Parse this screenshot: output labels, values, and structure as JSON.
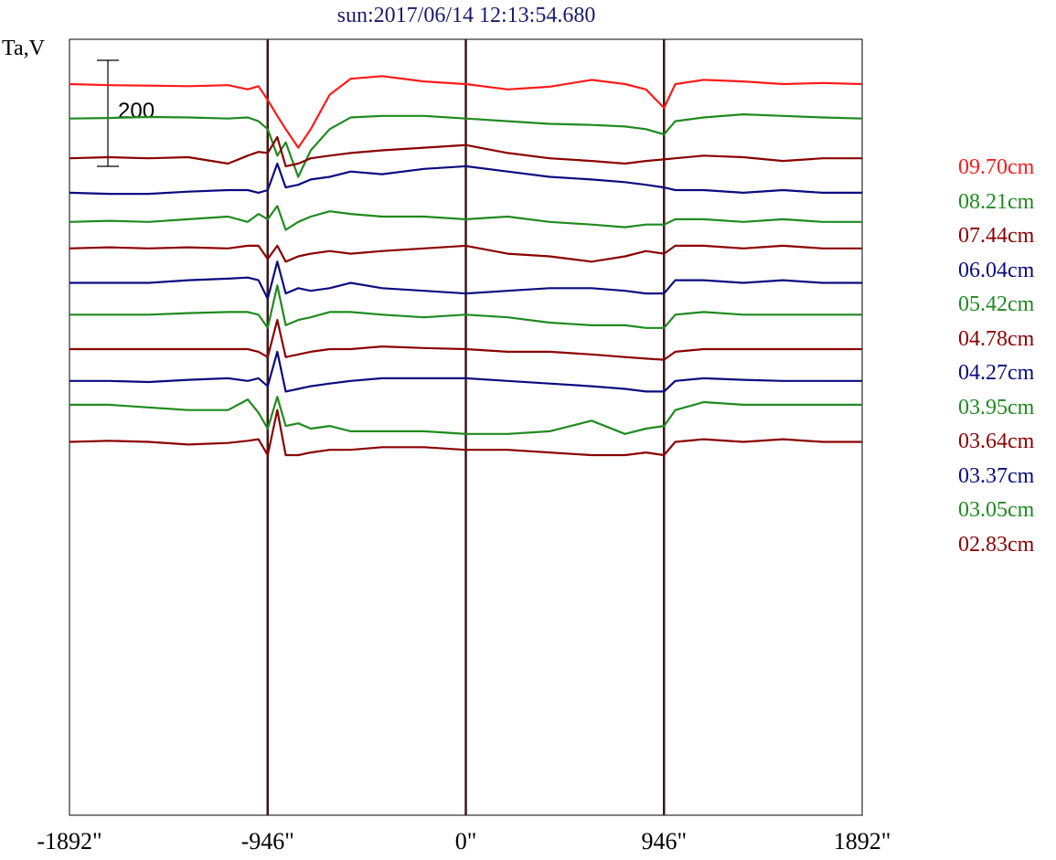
{
  "title": "sun:2017/06/14 12:13:54.680",
  "ylabel": "Ta,V",
  "scale_bar_label": "200",
  "colors": {
    "red": "#ff1a1a",
    "green": "#1f8a1f",
    "darkred": "#8b0000",
    "blue": "#0a0a80",
    "frame": "#000000",
    "vline": "#3a1818"
  },
  "chart_data": {
    "type": "line",
    "title": "sun:2017/06/14 12:13:54.680",
    "ylabel": "Ta,V",
    "xlabel": "",
    "xlim": [
      -1892,
      1892
    ],
    "x_tick_values": [
      -1892,
      -946,
      0,
      946,
      1892
    ],
    "x_tick_labels": [
      "-1892\"",
      "-946\"",
      "0\"",
      "946\"",
      "1892\""
    ],
    "vertical_lines": [
      -946,
      0,
      946
    ],
    "scale_bar": 200,
    "x": [
      -1892,
      -1703,
      -1514,
      -1325,
      -1135,
      -1041,
      -990,
      -946,
      -900,
      -860,
      -800,
      -740,
      -650,
      -550,
      -400,
      -200,
      0,
      200,
      400,
      600,
      760,
      860,
      946,
      1000,
      1135,
      1325,
      1514,
      1703,
      1892
    ],
    "series": [
      {
        "name": "09.70cm",
        "color": "red",
        "offset": 0,
        "values": [
          0,
          -2,
          -3,
          -4,
          -2,
          -10,
          -4,
          -30,
          -60,
          -85,
          -120,
          -85,
          -20,
          10,
          15,
          5,
          0,
          -10,
          -5,
          8,
          0,
          -10,
          -45,
          0,
          8,
          5,
          0,
          2,
          0
        ]
      },
      {
        "name": "08.21cm",
        "color": "green",
        "offset": -65,
        "values": [
          0,
          1,
          3,
          2,
          0,
          2,
          -5,
          -20,
          -70,
          -45,
          -110,
          -60,
          -20,
          2,
          5,
          5,
          0,
          -5,
          -10,
          -12,
          -15,
          -20,
          -30,
          -5,
          2,
          8,
          5,
          2,
          0
        ]
      },
      {
        "name": "07.44cm",
        "color": "darkred",
        "offset": -140,
        "values": [
          0,
          2,
          0,
          2,
          -10,
          5,
          12,
          10,
          40,
          -15,
          -10,
          0,
          5,
          10,
          15,
          20,
          25,
          10,
          0,
          -5,
          -10,
          -5,
          -2,
          0,
          5,
          2,
          -5,
          0,
          0
        ]
      },
      {
        "name": "06.04cm",
        "color": "blue",
        "offset": -205,
        "values": [
          0,
          -2,
          -2,
          2,
          5,
          5,
          0,
          5,
          55,
          10,
          15,
          25,
          30,
          40,
          35,
          45,
          50,
          40,
          30,
          25,
          20,
          15,
          10,
          5,
          5,
          0,
          5,
          0,
          0
        ]
      },
      {
        "name": "05.42cm",
        "color": "green",
        "offset": -260,
        "values": [
          0,
          2,
          0,
          5,
          10,
          0,
          15,
          5,
          30,
          -15,
          0,
          10,
          20,
          15,
          10,
          10,
          5,
          10,
          0,
          -5,
          -10,
          -5,
          -5,
          5,
          5,
          0,
          5,
          0,
          0
        ]
      },
      {
        "name": "04.78cm",
        "color": "darkred",
        "offset": -310,
        "values": [
          0,
          2,
          0,
          2,
          0,
          5,
          5,
          -20,
          5,
          -25,
          -15,
          -10,
          -5,
          -10,
          -5,
          0,
          5,
          -10,
          -15,
          -25,
          -15,
          -5,
          -10,
          5,
          5,
          0,
          5,
          0,
          0
        ]
      },
      {
        "name": "04.27cm",
        "color": "blue",
        "offset": -375,
        "values": [
          0,
          0,
          0,
          5,
          8,
          10,
          5,
          -30,
          40,
          -20,
          -10,
          -15,
          -10,
          0,
          -10,
          -15,
          -20,
          -15,
          -10,
          -10,
          -15,
          -20,
          -20,
          5,
          5,
          0,
          5,
          0,
          0
        ]
      },
      {
        "name": "03.95cm",
        "color": "green",
        "offset": -435,
        "values": [
          0,
          0,
          0,
          3,
          5,
          5,
          0,
          -25,
          55,
          -20,
          -10,
          -5,
          5,
          5,
          0,
          -5,
          0,
          -5,
          -15,
          -20,
          -20,
          -25,
          -25,
          0,
          5,
          0,
          0,
          0,
          0
        ]
      },
      {
        "name": "03.64cm",
        "color": "darkred",
        "offset": -500,
        "values": [
          0,
          0,
          0,
          0,
          0,
          0,
          -5,
          -15,
          55,
          -15,
          -10,
          -5,
          0,
          0,
          5,
          2,
          0,
          -5,
          -5,
          -10,
          -15,
          -18,
          -20,
          -5,
          0,
          0,
          0,
          0,
          0
        ]
      },
      {
        "name": "03.37cm",
        "color": "blue",
        "offset": -560,
        "values": [
          0,
          0,
          -2,
          2,
          5,
          0,
          5,
          -10,
          55,
          -20,
          -15,
          -10,
          -5,
          0,
          5,
          5,
          5,
          0,
          -5,
          -10,
          -15,
          -20,
          -20,
          0,
          5,
          2,
          0,
          0,
          0
        ]
      },
      {
        "name": "03.05cm",
        "color": "green",
        "offset": -605,
        "values": [
          0,
          0,
          -5,
          -10,
          -10,
          10,
          -15,
          -45,
          15,
          -40,
          -35,
          -45,
          -40,
          -50,
          -50,
          -50,
          -55,
          -55,
          -50,
          -30,
          -55,
          -45,
          -40,
          -10,
          5,
          0,
          0,
          0,
          0
        ]
      },
      {
        "name": "02.83cm",
        "color": "darkred",
        "offset": -675,
        "values": [
          0,
          2,
          0,
          -5,
          -2,
          2,
          5,
          -25,
          60,
          -25,
          -25,
          -20,
          -15,
          -15,
          -10,
          -10,
          -15,
          -15,
          -20,
          -25,
          -25,
          -20,
          -25,
          0,
          5,
          0,
          5,
          0,
          0
        ]
      }
    ]
  }
}
